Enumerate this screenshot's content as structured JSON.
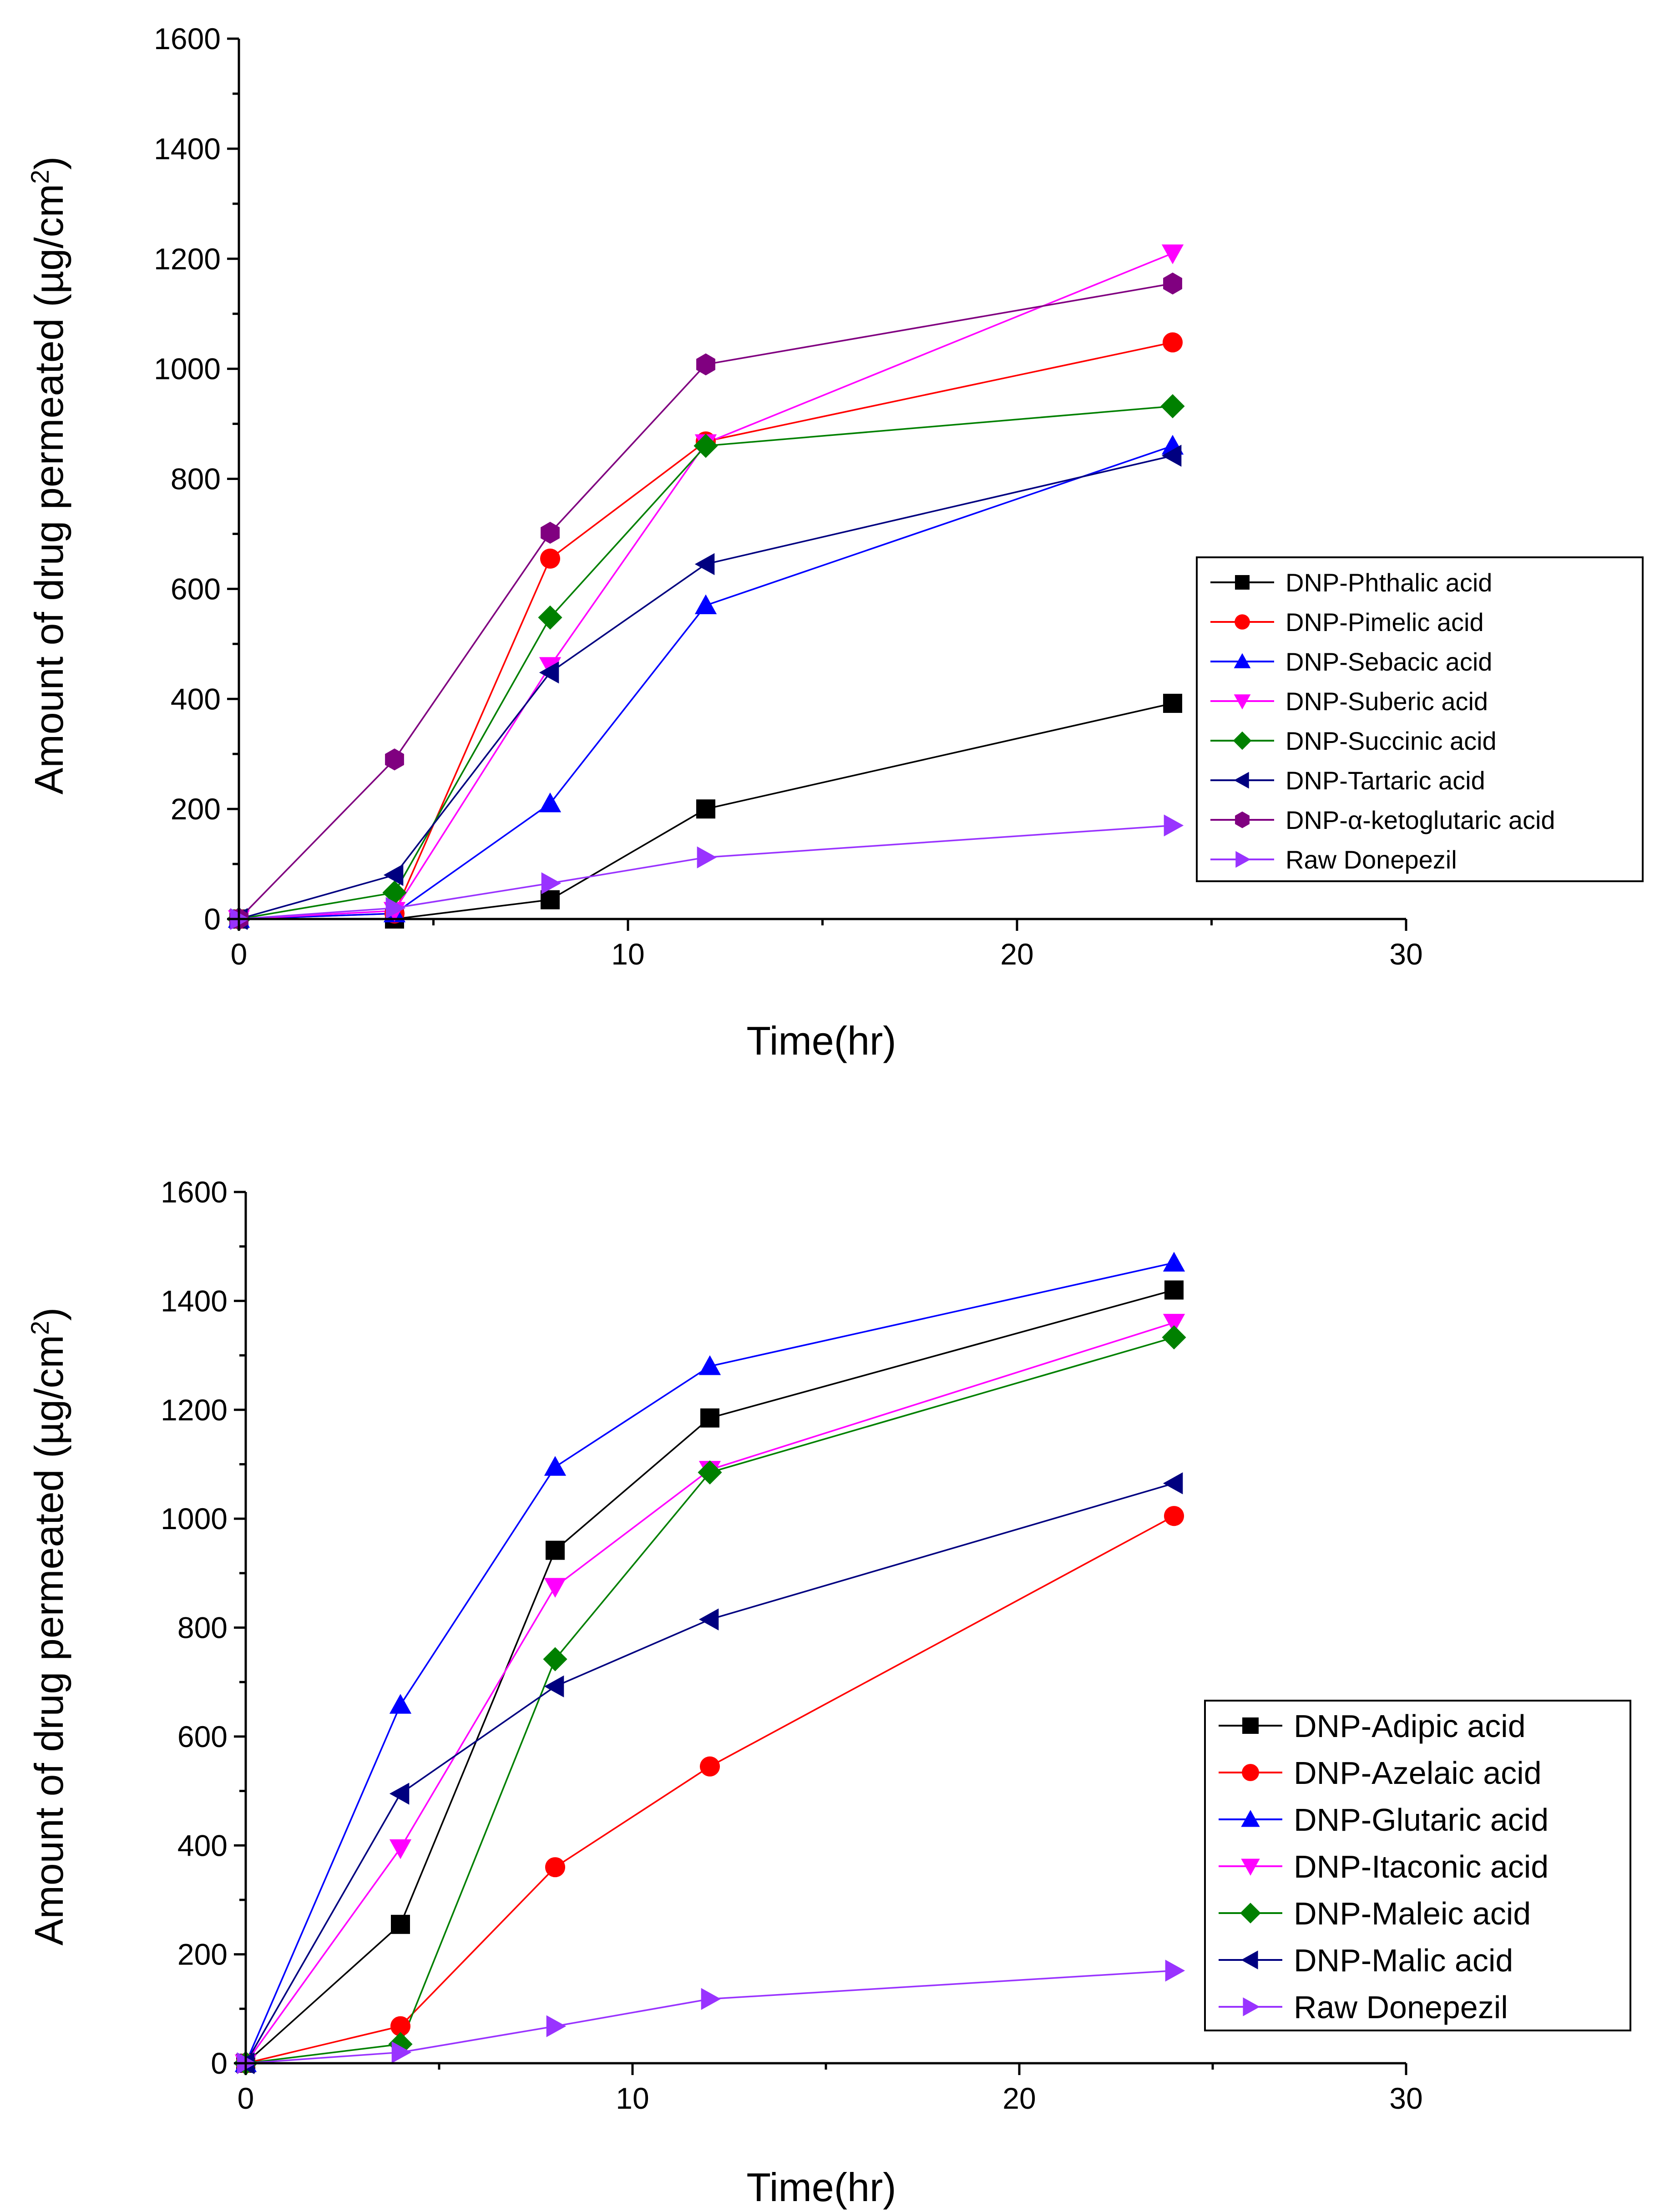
{
  "chart_data": [
    {
      "type": "line",
      "xlabel": "Time(hr)",
      "ylabel_main": "Amount of drug permeated (µg/cm",
      "ylabel_sup": "2",
      "ylabel_close": ")",
      "xlim": [
        0,
        30
      ],
      "ylim": [
        0,
        1600
      ],
      "x_ticks": [
        "0",
        "10",
        "20",
        "30"
      ],
      "y_ticks": [
        "0",
        "200",
        "400",
        "600",
        "800",
        "1000",
        "1200",
        "1400",
        "1600"
      ],
      "legend_position": "right-middle",
      "x": [
        0,
        4,
        8,
        12,
        24
      ],
      "series": [
        {
          "name": "DNP-Phthalic acid",
          "color": "#000000",
          "marker": "square",
          "values": [
            0,
            0,
            35,
            200,
            392
          ]
        },
        {
          "name": "DNP-Pimelic acid",
          "color": "#ff0000",
          "marker": "circle",
          "values": [
            0,
            10,
            655,
            868,
            1048
          ]
        },
        {
          "name": "DNP-Sebacic acid",
          "color": "#0000ff",
          "marker": "triangle-up",
          "values": [
            0,
            10,
            210,
            570,
            860
          ]
        },
        {
          "name": "DNP-Suberic acid",
          "color": "#ff00ff",
          "marker": "triangle-down",
          "values": [
            0,
            15,
            460,
            865,
            1210
          ]
        },
        {
          "name": "DNP-Succinic acid",
          "color": "#008000",
          "marker": "diamond",
          "values": [
            0,
            48,
            548,
            860,
            932
          ]
        },
        {
          "name": "DNP-Tartaric acid",
          "color": "#000080",
          "marker": "triangle-left",
          "values": [
            0,
            80,
            448,
            645,
            842
          ]
        },
        {
          "name": "DNP-α-ketoglutaric acid",
          "color": "#800080",
          "marker": "hexagon",
          "values": [
            0,
            290,
            702,
            1008,
            1155
          ]
        },
        {
          "name": "Raw Donepezil",
          "color": "#9933ff",
          "marker": "triangle-right",
          "values": [
            0,
            20,
            65,
            112,
            170
          ]
        }
      ]
    },
    {
      "type": "line",
      "xlabel": "Time(hr)",
      "ylabel_main": "Amount of drug permeated (µg/cm",
      "ylabel_sup": "2",
      "ylabel_close": ")",
      "xlim": [
        0,
        30
      ],
      "ylim": [
        0,
        1600
      ],
      "x_ticks": [
        "0",
        "10",
        "20",
        "30"
      ],
      "y_ticks": [
        "0",
        "200",
        "400",
        "600",
        "800",
        "1000",
        "1200",
        "1400",
        "1600"
      ],
      "legend_position": "bottom-right",
      "x": [
        0,
        4,
        8,
        12,
        24
      ],
      "series": [
        {
          "name": "DNP-Adipic acid",
          "color": "#000000",
          "marker": "square",
          "values": [
            0,
            255,
            942,
            1185,
            1420
          ]
        },
        {
          "name": "DNP-Azelaic acid",
          "color": "#ff0000",
          "marker": "circle",
          "values": [
            0,
            68,
            360,
            545,
            1005
          ]
        },
        {
          "name": "DNP-Glutaric acid",
          "color": "#0000ff",
          "marker": "triangle-up",
          "values": [
            0,
            658,
            1095,
            1280,
            1470
          ]
        },
        {
          "name": "DNP-Itaconic acid",
          "color": "#ff00ff",
          "marker": "triangle-down",
          "values": [
            0,
            395,
            875,
            1090,
            1360
          ]
        },
        {
          "name": "DNP-Maleic acid",
          "color": "#008000",
          "marker": "diamond",
          "values": [
            0,
            35,
            742,
            1085,
            1333
          ]
        },
        {
          "name": "DNP-Malic acid",
          "color": "#000080",
          "marker": "triangle-left",
          "values": [
            0,
            495,
            692,
            815,
            1065
          ]
        },
        {
          "name": "Raw Donepezil",
          "color": "#9933ff",
          "marker": "triangle-right",
          "values": [
            0,
            20,
            68,
            118,
            170
          ]
        }
      ]
    }
  ]
}
